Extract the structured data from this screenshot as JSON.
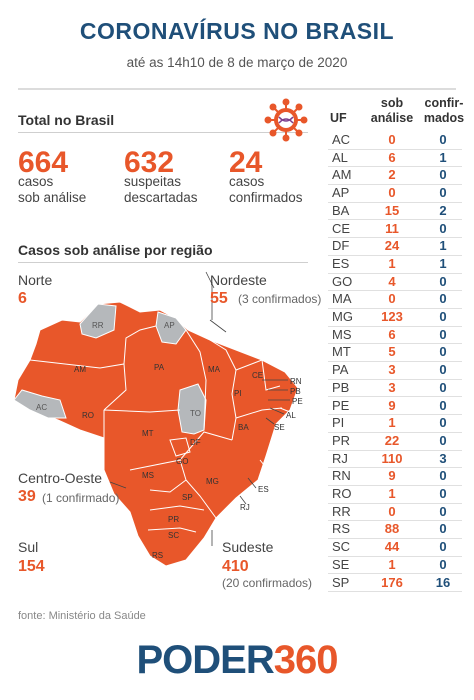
{
  "header": {
    "title": "CORONAVÍRUS NO BRASIL",
    "subtitle": "até as 14h10 de 8 de março de 2020"
  },
  "totals": {
    "title": "Total no Brasil",
    "items": [
      {
        "value": "664",
        "label1": "casos",
        "label2": "sob análise"
      },
      {
        "value": "632",
        "label1": "suspeitas",
        "label2": "descartadas"
      },
      {
        "value": "24",
        "label1": "casos",
        "label2": "confirmados"
      }
    ]
  },
  "regions": {
    "title": "Casos sob análise por região",
    "norte": {
      "name": "Norte",
      "value": "6"
    },
    "nordeste": {
      "name": "Nordeste",
      "value": "55",
      "note": "(3 confirmados)"
    },
    "centro_oeste": {
      "name": "Centro-Oeste",
      "value": "39",
      "note": "(1 confirmado)"
    },
    "sul": {
      "name": "Sul",
      "value": "154"
    },
    "sudeste": {
      "name": "Sudeste",
      "value": "410",
      "note": "(20 confirmados)"
    }
  },
  "map_labels": [
    "RR",
    "AP",
    "AM",
    "PA",
    "MA",
    "CE",
    "RN",
    "PB",
    "PE",
    "AL",
    "SE",
    "PI",
    "AC",
    "RO",
    "TO",
    "BA",
    "MT",
    "DF",
    "GO",
    "MG",
    "ES",
    "MS",
    "SP",
    "RJ",
    "PR",
    "SC",
    "RS"
  ],
  "table": {
    "headers": {
      "uf": "UF",
      "sob1": "sob",
      "sob2": "análise",
      "conf1": "confir-",
      "conf2": "mados"
    },
    "rows": [
      {
        "uf": "AC",
        "sob": "0",
        "conf": "0"
      },
      {
        "uf": "AL",
        "sob": "6",
        "conf": "1"
      },
      {
        "uf": "AM",
        "sob": "2",
        "conf": "0"
      },
      {
        "uf": "AP",
        "sob": "0",
        "conf": "0"
      },
      {
        "uf": "BA",
        "sob": "15",
        "conf": "2"
      },
      {
        "uf": "CE",
        "sob": "11",
        "conf": "0"
      },
      {
        "uf": "DF",
        "sob": "24",
        "conf": "1"
      },
      {
        "uf": "ES",
        "sob": "1",
        "conf": "1"
      },
      {
        "uf": "GO",
        "sob": "4",
        "conf": "0"
      },
      {
        "uf": "MA",
        "sob": "0",
        "conf": "0"
      },
      {
        "uf": "MG",
        "sob": "123",
        "conf": "0"
      },
      {
        "uf": "MS",
        "sob": "6",
        "conf": "0"
      },
      {
        "uf": "MT",
        "sob": "5",
        "conf": "0"
      },
      {
        "uf": "PA",
        "sob": "3",
        "conf": "0"
      },
      {
        "uf": "PB",
        "sob": "3",
        "conf": "0"
      },
      {
        "uf": "PE",
        "sob": "9",
        "conf": "0"
      },
      {
        "uf": "PI",
        "sob": "1",
        "conf": "0"
      },
      {
        "uf": "PR",
        "sob": "22",
        "conf": "0"
      },
      {
        "uf": "RJ",
        "sob": "110",
        "conf": "3"
      },
      {
        "uf": "RN",
        "sob": "9",
        "conf": "0"
      },
      {
        "uf": "RO",
        "sob": "1",
        "conf": "0"
      },
      {
        "uf": "RR",
        "sob": "0",
        "conf": "0"
      },
      {
        "uf": "RS",
        "sob": "88",
        "conf": "0"
      },
      {
        "uf": "SC",
        "sob": "44",
        "conf": "0"
      },
      {
        "uf": "SE",
        "sob": "1",
        "conf": "0"
      },
      {
        "uf": "SP",
        "sob": "176",
        "conf": "16"
      }
    ]
  },
  "footer": {
    "source": "fonte: Ministério da Saúde",
    "logo_a": "PODER",
    "logo_b": "360"
  },
  "colors": {
    "accent": "#e8572a",
    "navy": "#1f4f79",
    "gray_state": "#b5b8bb"
  },
  "icons": [
    "virus-icon"
  ]
}
